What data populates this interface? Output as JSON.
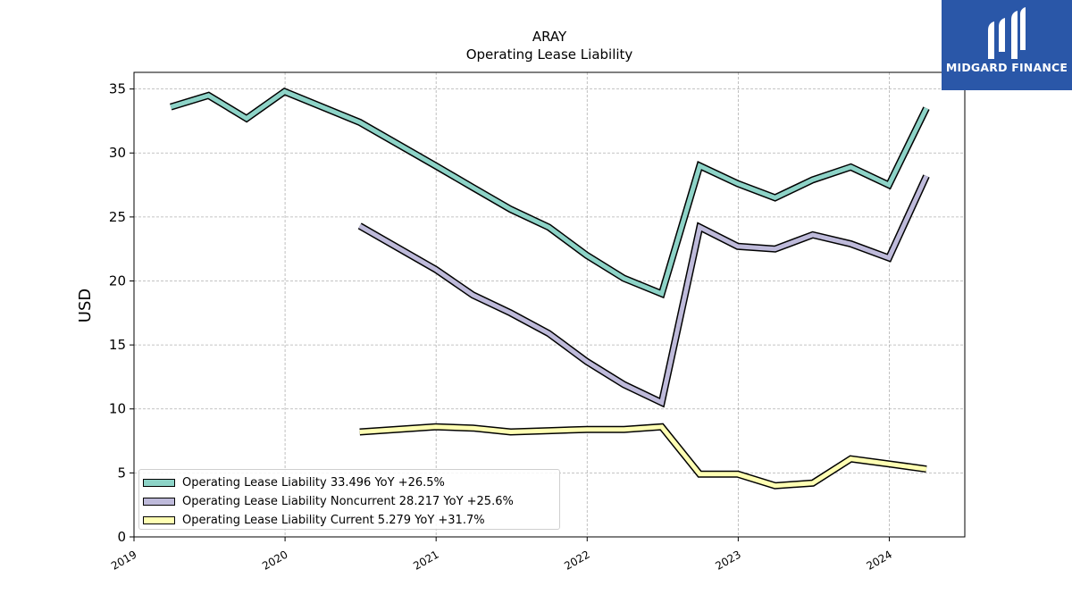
{
  "title": "ARAY",
  "subtitle": "Operating Lease Liability",
  "logo_text": "MIDGARD FINANCE",
  "chart_data": {
    "type": "line",
    "ylabel": "USD",
    "xlabel": "",
    "ylim": [
      0,
      36.3
    ],
    "xlim": [
      2019.0,
      2024.5
    ],
    "yticks": [
      0,
      5,
      10,
      15,
      20,
      25,
      30,
      35
    ],
    "xticks": [
      "2019",
      "2020",
      "2021",
      "2022",
      "2023",
      "2024"
    ],
    "grid": true,
    "legend_position": "lower-left",
    "series": [
      {
        "name": "Operating Lease Liability",
        "legend_label": "Operating Lease Liability  33.496 YoY +26.5%",
        "color": "#8dd3c7",
        "x": [
          "2019-03-31",
          "2019-06-30",
          "2019-09-30",
          "2019-12-31",
          "2020-06-30",
          "2020-12-31",
          "2021-03-31",
          "2021-06-30",
          "2021-09-30",
          "2021-12-31",
          "2022-03-31",
          "2022-06-30",
          "2022-09-30",
          "2022-12-31",
          "2023-03-31",
          "2023-06-30",
          "2023-09-30",
          "2023-12-31",
          "2024-03-31"
        ],
        "values": [
          33.6,
          34.5,
          32.7,
          34.8,
          32.4,
          29.0,
          27.3,
          25.6,
          24.2,
          22.0,
          20.2,
          19.0,
          29.0,
          27.6,
          26.5,
          27.9,
          28.9,
          27.5,
          33.5
        ]
      },
      {
        "name": "Operating Lease Liability Noncurrent",
        "legend_label": "Operating Lease Liability Noncurrent  28.217 YoY +25.6%",
        "color": "#bebada",
        "x": [
          "2020-06-30",
          "2020-12-31",
          "2021-03-31",
          "2021-06-30",
          "2021-09-30",
          "2021-12-31",
          "2022-03-31",
          "2022-06-30",
          "2022-09-30",
          "2022-12-31",
          "2023-03-31",
          "2023-06-30",
          "2023-09-30",
          "2023-12-31",
          "2024-03-31"
        ],
        "values": [
          24.3,
          20.9,
          18.9,
          17.5,
          15.9,
          13.7,
          11.9,
          10.5,
          24.2,
          22.7,
          22.5,
          23.6,
          22.9,
          21.8,
          28.2
        ]
      },
      {
        "name": "Operating Lease Liability Current",
        "legend_label": "Operating Lease Liability Current  5.279 YoY +31.7%",
        "color": "#ffffb3",
        "x": [
          "2020-06-30",
          "2020-12-31",
          "2021-03-31",
          "2021-06-30",
          "2021-09-30",
          "2021-12-31",
          "2022-03-31",
          "2022-06-30",
          "2022-09-30",
          "2022-12-31",
          "2023-03-31",
          "2023-06-30",
          "2023-09-30",
          "2023-12-31",
          "2024-03-31"
        ],
        "values": [
          8.2,
          8.6,
          8.5,
          8.2,
          8.3,
          8.4,
          8.4,
          8.6,
          4.9,
          4.9,
          4.0,
          4.2,
          6.1,
          5.7,
          5.3
        ]
      }
    ]
  }
}
